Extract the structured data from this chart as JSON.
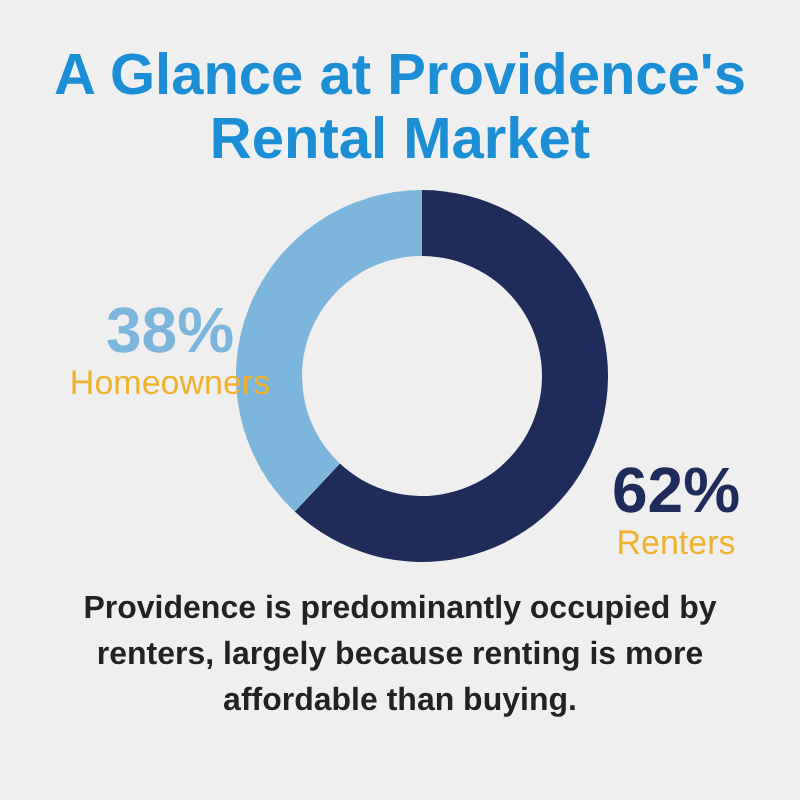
{
  "chart_data": {
    "type": "donut",
    "title": "A Glance at Providence's Rental Market",
    "categories": [
      "Renters",
      "Homeowners"
    ],
    "values": [
      62,
      38
    ],
    "colors": [
      "#1f2b5b",
      "#7db6dc"
    ],
    "value_labels": [
      "62%",
      "38%"
    ],
    "annotations": [
      "Providence is predominantly occupied by renters, largely because renting is more affordable than buying."
    ]
  }
}
